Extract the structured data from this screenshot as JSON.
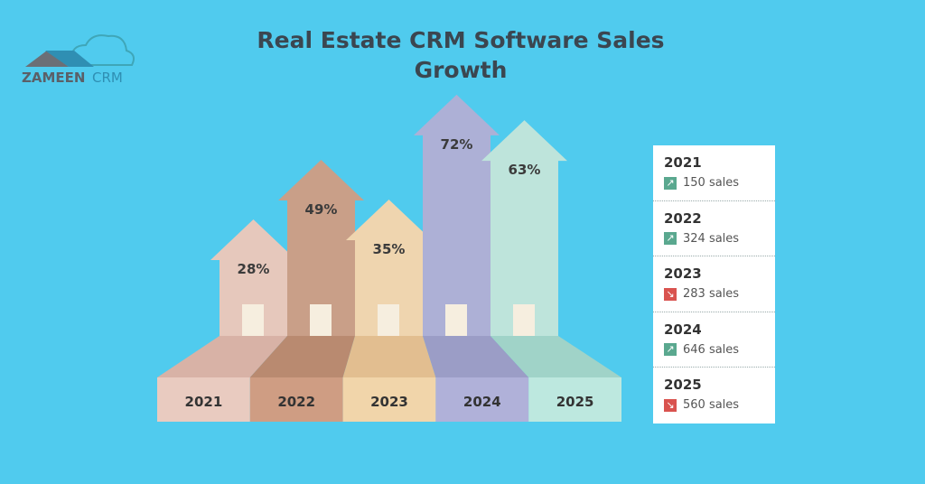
{
  "logo": {
    "text": "ZAMEEN CRM"
  },
  "chart_data": {
    "type": "bar",
    "title": "Real Estate CRM Software Sales Growth",
    "categories": [
      "2021",
      "2022",
      "2023",
      "2024",
      "2025"
    ],
    "values": [
      28,
      49,
      35,
      72,
      63
    ],
    "value_labels": [
      "28%",
      "49%",
      "35%",
      "72%",
      "63%"
    ],
    "colors": {
      "body": [
        "#e6c8bc",
        "#c99f88",
        "#efd5af",
        "#adb0d6",
        "#bee4db"
      ],
      "floor": [
        "#d8b2a6",
        "#b98a70",
        "#e2be90",
        "#9b9dc6",
        "#a0d3c8"
      ],
      "front": [
        "#e9cbc0",
        "#cf9d83",
        "#f1d5aa",
        "#b0b1d9",
        "#bde8df"
      ]
    },
    "legend": [
      {
        "year": "2021",
        "sales": "150 sales",
        "trend": "up"
      },
      {
        "year": "2022",
        "sales": "324 sales",
        "trend": "up"
      },
      {
        "year": "2023",
        "sales": "283 sales",
        "trend": "down"
      },
      {
        "year": "2024",
        "sales": "646 sales",
        "trend": "up"
      },
      {
        "year": "2025",
        "sales": "560 sales",
        "trend": "down"
      }
    ],
    "trend_colors": {
      "up": "#5aa88f",
      "down": "#d9534f"
    }
  }
}
